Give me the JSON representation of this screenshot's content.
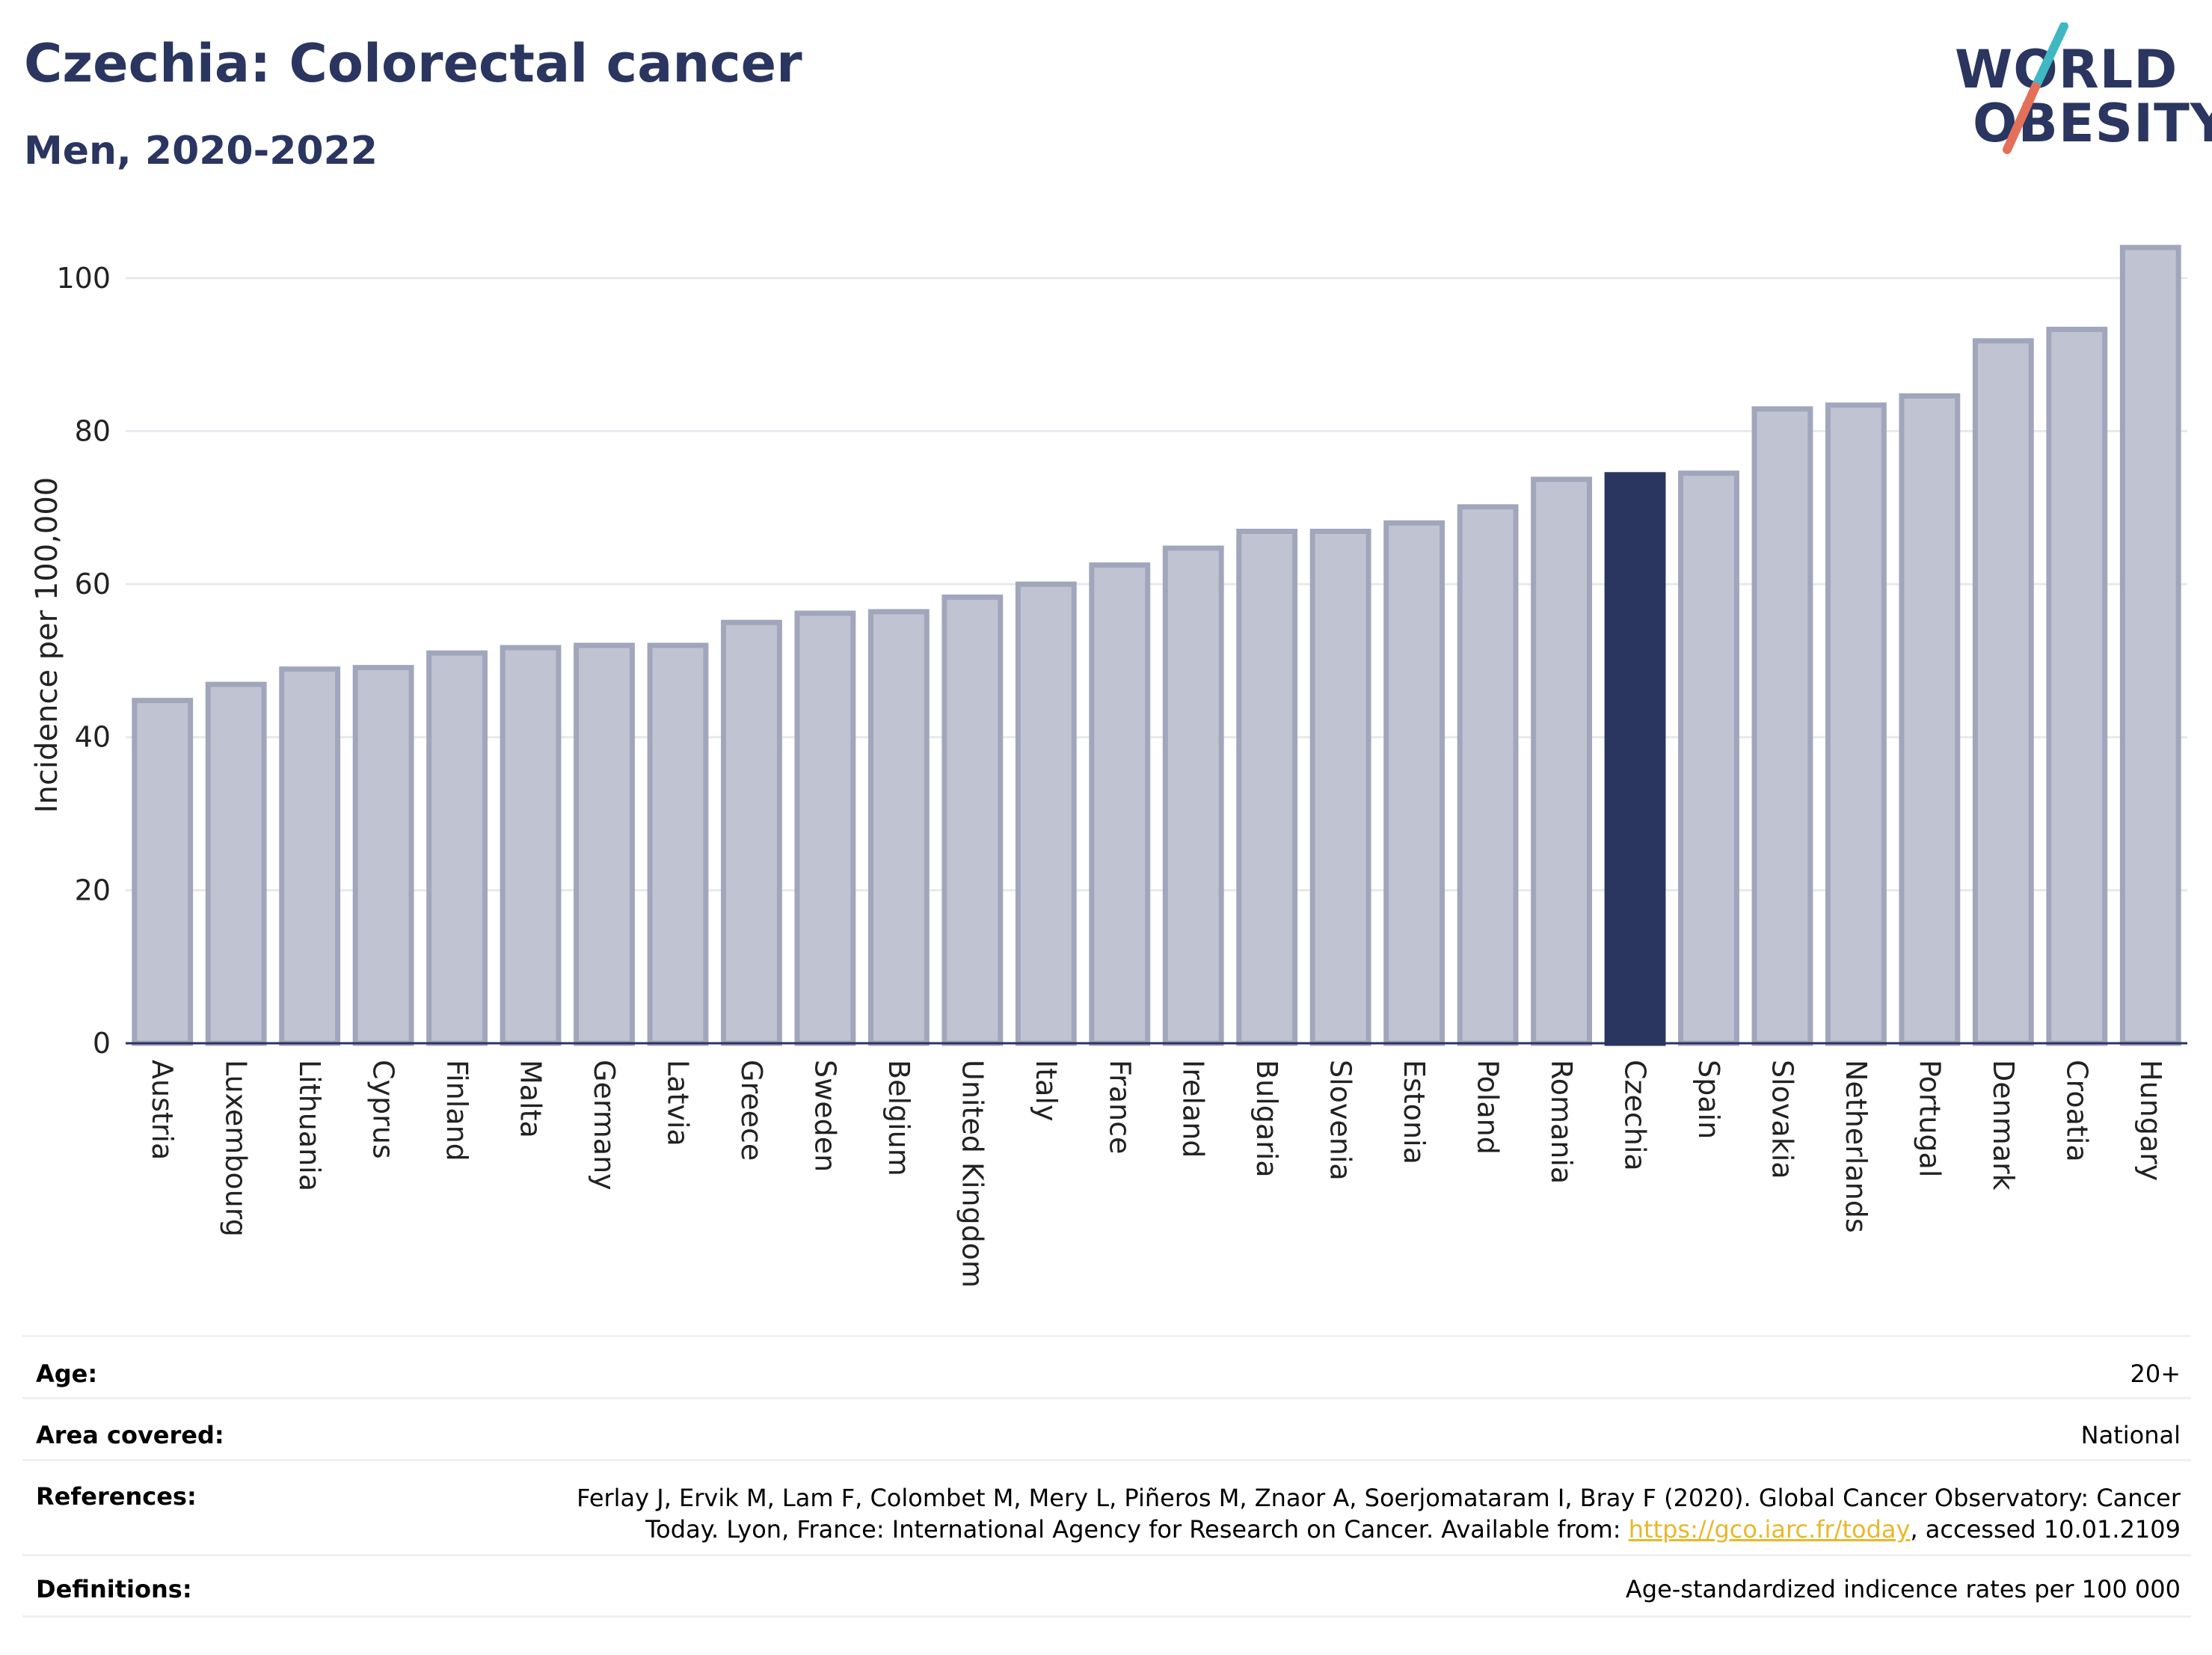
{
  "header": {
    "title": "Czechia: Colorectal cancer",
    "subtitle": "Men, 2020-2022"
  },
  "logo": {
    "line1": "WORLD",
    "line2": "OBESITY",
    "text_color": "#2a3560",
    "slash_top_color": "#3fb8c4",
    "slash_bottom_color": "#e4705a"
  },
  "chart_data": {
    "type": "bar",
    "ylabel": "Incidence per 100,000",
    "xlabel": "",
    "ylim": [
      0,
      108
    ],
    "yticks": [
      0,
      20,
      40,
      60,
      80,
      100
    ],
    "grid": true,
    "highlight": "Czechia",
    "colors": {
      "bar": "#c0c4d2",
      "bar_edge": "#a1a6bc",
      "highlight": "#2a3560",
      "grid": "#e6e9ee",
      "axis": "#2a3560"
    },
    "categories": [
      "Austria",
      "Luxembourg",
      "Lithuania",
      "Cyprus",
      "Finland",
      "Malta",
      "Germany",
      "Latvia",
      "Greece",
      "Sweden",
      "Belgium",
      "United Kingdom",
      "Italy",
      "France",
      "Ireland",
      "Bulgaria",
      "Slovenia",
      "Estonia",
      "Poland",
      "Romania",
      "Czechia",
      "Spain",
      "Slovakia",
      "Netherlands",
      "Portugal",
      "Denmark",
      "Croatia",
      "Hungary"
    ],
    "values": [
      44.8,
      46.9,
      48.9,
      49.1,
      51.0,
      51.7,
      52.0,
      52.0,
      55.0,
      56.2,
      56.4,
      58.3,
      60.0,
      62.5,
      64.7,
      66.9,
      66.9,
      68.0,
      70.1,
      73.7,
      74.3,
      74.5,
      82.9,
      83.4,
      84.6,
      91.8,
      93.3,
      104.0
    ]
  },
  "meta": {
    "age_label": "Age:",
    "age_value": "20+",
    "area_label": "Area covered:",
    "area_value": "National",
    "references_label": "References:",
    "references_line1": "Ferlay J, Ervik M, Lam F, Colombet M, Mery L, Piñeros M, Znaor A, Soerjomataram I, Bray F (2020). Global Cancer Observatory: Cancer",
    "references_line2_pre": "Today. Lyon, France: International Agency for Research on Cancer. Available from: ",
    "references_link": "https://gco.iarc.fr/today",
    "references_line2_post": ", accessed 10.01.2109",
    "definitions_label": "Definitions:",
    "definitions_value": "Age-standardized indicence rates per 100 000"
  }
}
